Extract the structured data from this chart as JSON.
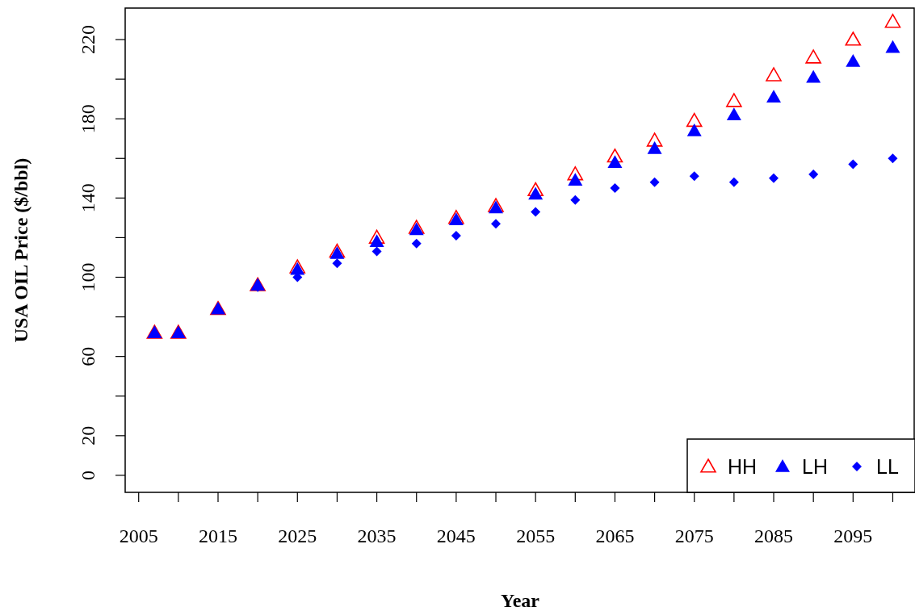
{
  "chart_data": {
    "type": "scatter",
    "xlabel": "Year",
    "ylabel": "USA OIL Price ($/bbl)",
    "x": [
      2007,
      2010,
      2015,
      2020,
      2025,
      2030,
      2035,
      2040,
      2045,
      2050,
      2055,
      2060,
      2065,
      2070,
      2075,
      2080,
      2085,
      2090,
      2095,
      2100
    ],
    "xlim": [
      2003.3,
      2102.7
    ],
    "ylim": [
      -8.6,
      235.9
    ],
    "xticks": [
      2005,
      {
        "value": 2010,
        "label": null
      },
      2015,
      {
        "value": 2020,
        "label": null
      },
      2025,
      {
        "value": 2030,
        "label": null
      },
      2035,
      {
        "value": 2040,
        "label": null
      },
      2045,
      {
        "value": 2050,
        "label": null
      },
      2055,
      {
        "value": 2060,
        "label": null
      },
      2065,
      {
        "value": 2070,
        "label": null
      },
      2075,
      {
        "value": 2080,
        "label": null
      },
      2085,
      {
        "value": 2090,
        "label": null
      },
      2095,
      {
        "value": 2100,
        "label": null
      }
    ],
    "yticks": [
      0,
      20,
      {
        "value": 40,
        "label": null
      },
      60,
      {
        "value": 80,
        "label": null
      },
      100,
      {
        "value": 120,
        "label": null
      },
      140,
      {
        "value": 160,
        "label": null
      },
      180,
      {
        "value": 200,
        "label": null
      },
      220
    ],
    "legend": "bottom right",
    "grid": false,
    "series": [
      {
        "name": "HH",
        "color": "#ff0000",
        "marker": "triangle-open",
        "values": [
          72,
          72,
          84,
          96,
          105,
          113,
          120,
          125,
          130,
          136,
          144,
          152,
          161,
          169,
          179,
          189,
          202,
          211,
          220,
          229
        ]
      },
      {
        "name": "LH",
        "color": "#0000ff",
        "marker": "triangle",
        "values": [
          72,
          72,
          84,
          96,
          104,
          112,
          118,
          124,
          129,
          135,
          142,
          149,
          158,
          165,
          174,
          182,
          191,
          201,
          209,
          216
        ]
      },
      {
        "name": "LL",
        "color": "#0000ff",
        "marker": "diamond",
        "values": [
          null,
          null,
          null,
          95,
          100,
          107,
          113,
          117,
          121,
          127,
          133,
          139,
          145,
          148,
          151,
          148,
          150,
          152,
          157,
          160
        ]
      }
    ]
  }
}
